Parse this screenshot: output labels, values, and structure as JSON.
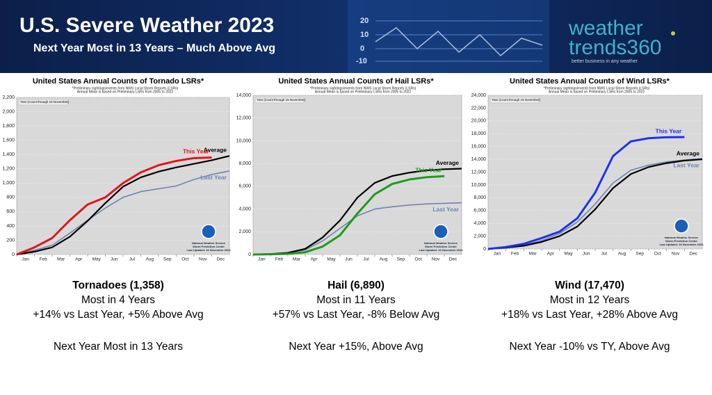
{
  "header": {
    "title": "U.S. Severe Weather 2023",
    "subtitle": "Next Year Most in 13 Years – Much Above Avg",
    "decor_labels": [
      "20",
      "10",
      "0",
      "-10"
    ],
    "logo_top": "weather",
    "logo_bottom": "trends360",
    "logo_tagline": "better business in any weather"
  },
  "chart_data": [
    {
      "type": "line",
      "title": "United States Annual Counts of Tornado LSRs*",
      "subtitle": [
        "*Preliminary sightings/events from NWS Local Storm Reports (LSRs)",
        "Annual Mean is based on Preliminary LSRs from 2005 to 2022"
      ],
      "legend_title": "Year (Count through 15 November)",
      "footnote": [
        "National Weather Service",
        "Storm Prediction Center",
        "Last Updated: 16 November 2023"
      ],
      "categories": [
        "Jan",
        "Feb",
        "Mar",
        "Apr",
        "May",
        "Jun",
        "Jul",
        "Aug",
        "Sep",
        "Oct",
        "Nov",
        "Dec"
      ],
      "ylim": [
        0,
        2200
      ],
      "yticks": [
        0,
        200,
        400,
        600,
        800,
        {
          "value": 1000,
          "label": "1,000"
        },
        {
          "value": 1200,
          "label": "1,200"
        },
        {
          "value": 1400,
          "label": "1,400"
        },
        {
          "value": 1600,
          "label": "1,600"
        },
        {
          "value": 1800,
          "label": "1,800"
        },
        {
          "value": 2000,
          "label": "2,000"
        },
        {
          "value": 2200,
          "label": "2,200"
        }
      ],
      "grid": true,
      "series": [
        {
          "name": "This Year",
          "color": "#e0141e",
          "values": [
            100,
            230,
            480,
            700,
            800,
            1000,
            1150,
            1250,
            1310,
            1350,
            1358,
            null
          ]
        },
        {
          "name": "Average",
          "color": "#000000",
          "values": [
            40,
            100,
            250,
            470,
            720,
            950,
            1080,
            1160,
            1220,
            1270,
            1320,
            1380
          ]
        },
        {
          "name": "Last Year",
          "color": "#6f82b0",
          "values": [
            60,
            130,
            300,
            480,
            650,
            800,
            880,
            920,
            960,
            1050,
            1120,
            1170
          ]
        }
      ]
    },
    {
      "type": "line",
      "title": "United States Annual Counts of Hail LSRs*",
      "subtitle": [
        "*Preliminary sightings/events from NWS Local Storm Reports (LSRs)",
        "Annual Mean is based on Preliminary LSRs from 2005 to 2022"
      ],
      "legend_title": "Year (Count through 15 November)",
      "footnote": [
        "National Weather Service",
        "Storm Prediction Center",
        "Last Updated: 16 November 2023"
      ],
      "categories": [
        "Jan",
        "Feb",
        "Mar",
        "Apr",
        "May",
        "Jun",
        "Jul",
        "Aug",
        "Sep",
        "Oct",
        "Nov",
        "Dec"
      ],
      "ylim": [
        0,
        14000
      ],
      "yticks": [
        0,
        {
          "value": 2000,
          "label": "2,000"
        },
        {
          "value": 4000,
          "label": "4,000"
        },
        {
          "value": 6000,
          "label": "6,000"
        },
        {
          "value": 8000,
          "label": "8,000"
        },
        {
          "value": 10000,
          "label": "10,000"
        },
        {
          "value": 12000,
          "label": "12,000"
        },
        {
          "value": 14000,
          "label": "14,000"
        }
      ],
      "grid": true,
      "series": [
        {
          "name": "This Year",
          "color": "#1e9a1e",
          "values": [
            20,
            60,
            200,
            700,
            1700,
            3600,
            5300,
            6200,
            6600,
            6800,
            6890,
            null
          ]
        },
        {
          "name": "Average",
          "color": "#000000",
          "values": [
            50,
            150,
            500,
            1500,
            3000,
            5000,
            6300,
            6900,
            7200,
            7400,
            7500,
            7550
          ]
        },
        {
          "name": "Last Year",
          "color": "#6f82b0",
          "values": [
            50,
            150,
            400,
            1200,
            2300,
            3400,
            4000,
            4200,
            4350,
            4450,
            4500,
            4550
          ]
        }
      ]
    },
    {
      "type": "line",
      "title": "United States Annual Counts of Wind LSRs*",
      "subtitle": [
        "*Preliminary sightings/events from NWS Local Storm Reports (LSRs)",
        "Annual Mean is based on Preliminary LSRs from 2005 to 2022"
      ],
      "legend_title": "Year (Count through 15 November)",
      "footnote": [
        "National Weather Service",
        "Storm Prediction Center",
        "Last Updated: 16 November 2023"
      ],
      "categories": [
        "Jan",
        "Feb",
        "Mar",
        "Apr",
        "May",
        "Jun",
        "Jul",
        "Aug",
        "Sep",
        "Oct",
        "Nov",
        "Dec"
      ],
      "ylim": [
        0,
        24000
      ],
      "yticks": [
        0,
        {
          "value": 2000,
          "label": "2,000"
        },
        {
          "value": 4000,
          "label": "4,000"
        },
        {
          "value": 6000,
          "label": "6,000"
        },
        {
          "value": 8000,
          "label": "8,000"
        },
        {
          "value": 10000,
          "label": "10,000"
        },
        {
          "value": 12000,
          "label": "12,000"
        },
        {
          "value": 14000,
          "label": "14,000"
        },
        {
          "value": 16000,
          "label": "16,000"
        },
        {
          "value": 18000,
          "label": "18,000"
        },
        {
          "value": 20000,
          "label": "20,000"
        },
        {
          "value": 22000,
          "label": "22,000"
        },
        {
          "value": 24000,
          "label": "24,000"
        }
      ],
      "grid": true,
      "series": [
        {
          "name": "This Year",
          "color": "#1f2ff0",
          "values": [
            300,
            800,
            1700,
            2700,
            4800,
            8800,
            14500,
            16800,
            17300,
            17450,
            17470,
            null
          ]
        },
        {
          "name": "Average",
          "color": "#000000",
          "values": [
            200,
            500,
            1100,
            2000,
            3500,
            6200,
            9500,
            11700,
            12800,
            13400,
            13800,
            14000
          ]
        },
        {
          "name": "Last Year",
          "color": "#6f82b0",
          "values": [
            250,
            600,
            1300,
            2400,
            4200,
            7000,
            10300,
            12300,
            13100,
            13600,
            13900,
            14100
          ]
        }
      ]
    }
  ],
  "captions": [
    {
      "title": "Tornadoes (1,358)",
      "lines": [
        "Most in 4 Years",
        "+14% vs Last Year, +5% Above Avg"
      ],
      "outlook": "Next Year Most in 13 Years"
    },
    {
      "title": "Hail (6,890)",
      "lines": [
        "Most in 11 Years",
        "+57% vs Last Year, -8% Below Avg"
      ],
      "outlook": "Next Year +15%, Above Avg"
    },
    {
      "title": "Wind (17,470)",
      "lines": [
        "Most in 12 Years",
        "+18% vs Last Year, +28% Above Avg"
      ],
      "outlook": "Next Year -10% vs TY, Above Avg"
    }
  ]
}
